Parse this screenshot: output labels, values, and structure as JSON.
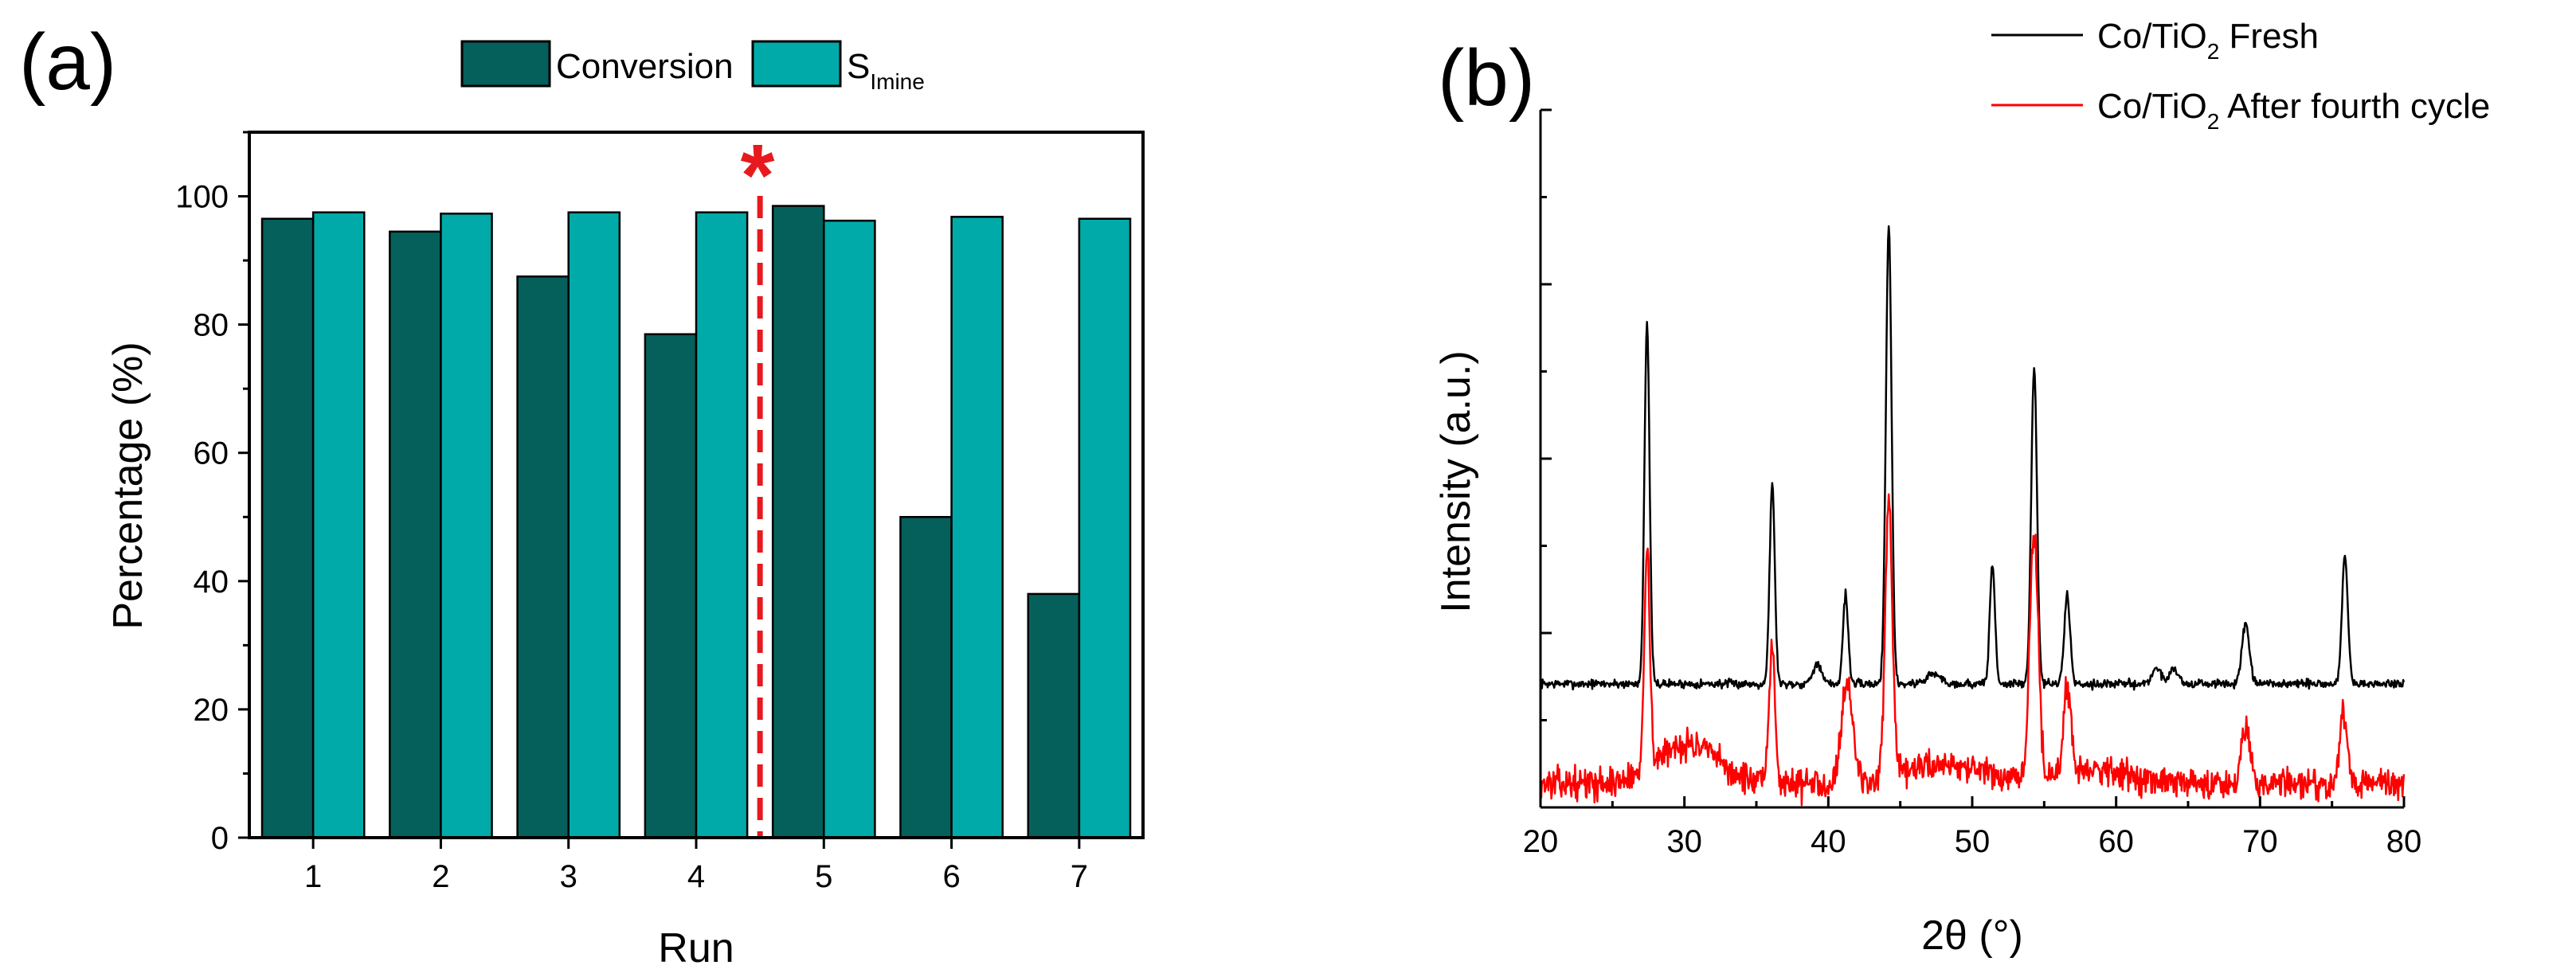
{
  "chart_data": [
    {
      "id": "a",
      "type": "bar",
      "panel_label": "(a)",
      "xlabel": "Run",
      "ylabel": "Percentage (%)",
      "categories": [
        "1",
        "2",
        "3",
        "4",
        "5",
        "6",
        "7"
      ],
      "ylim": [
        0,
        110
      ],
      "yticks": [
        "0",
        "20",
        "40",
        "60",
        "80",
        "100"
      ],
      "series": [
        {
          "name": "Conversion",
          "color": "#05605b",
          "values": [
            96.5,
            94.5,
            87.5,
            78.5,
            98.5,
            50,
            38
          ]
        },
        {
          "name": "S",
          "name_sub": "Imine",
          "color": "#00aaa8",
          "values": [
            97.5,
            97.3,
            97.5,
            97.5,
            96.2,
            96.8,
            96.5
          ]
        }
      ],
      "legend_position": "top",
      "annotation": {
        "text": "*",
        "color": "#e8191e",
        "x_between": [
          4,
          5
        ]
      }
    },
    {
      "id": "b",
      "type": "line",
      "panel_label": "(b)",
      "xlabel": "2θ (°)",
      "ylabel": "Intensity (a.u.)",
      "xlim": [
        20,
        80
      ],
      "xticks": [
        "20",
        "30",
        "40",
        "50",
        "60",
        "70",
        "80"
      ],
      "legend_position": "top-right",
      "series": [
        {
          "name": "Co/TiO",
          "name_sub": "2",
          "name_suffix": " Fresh",
          "color": "#000000",
          "baseline": 62,
          "noise": 2.2,
          "seed": 7,
          "peaks": [
            [
              27.4,
              180,
              0.18
            ],
            [
              36.1,
              100,
              0.18
            ],
            [
              39.2,
              10,
              0.3
            ],
            [
              41.2,
              45,
              0.18
            ],
            [
              44.2,
              230,
              0.2
            ],
            [
              47.3,
              5,
              0.5
            ],
            [
              51.4,
              60,
              0.18
            ],
            [
              54.3,
              160,
              0.2
            ],
            [
              56.6,
              45,
              0.2
            ],
            [
              62.8,
              8,
              0.3
            ],
            [
              64.0,
              8,
              0.3
            ],
            [
              69.0,
              30,
              0.25
            ],
            [
              75.9,
              65,
              0.2
            ]
          ]
        },
        {
          "name": "Co/TiO",
          "name_sub": "2",
          "name_suffix": " After fourth cycle",
          "color": "#ff0000",
          "baseline": 12,
          "noise": 7.5,
          "seed": 13,
          "peaks": [
            [
              27.4,
              110,
              0.2
            ],
            [
              30.2,
              20,
              2.0
            ],
            [
              36.1,
              70,
              0.2
            ],
            [
              41.3,
              50,
              0.4
            ],
            [
              44.2,
              135,
              0.25
            ],
            [
              48.0,
              10,
              2.5
            ],
            [
              54.3,
              125,
              0.3
            ],
            [
              56.6,
              45,
              0.25
            ],
            [
              58.5,
              8,
              2.0
            ],
            [
              69.0,
              30,
              0.3
            ],
            [
              75.8,
              35,
              0.25
            ]
          ]
        }
      ]
    }
  ]
}
